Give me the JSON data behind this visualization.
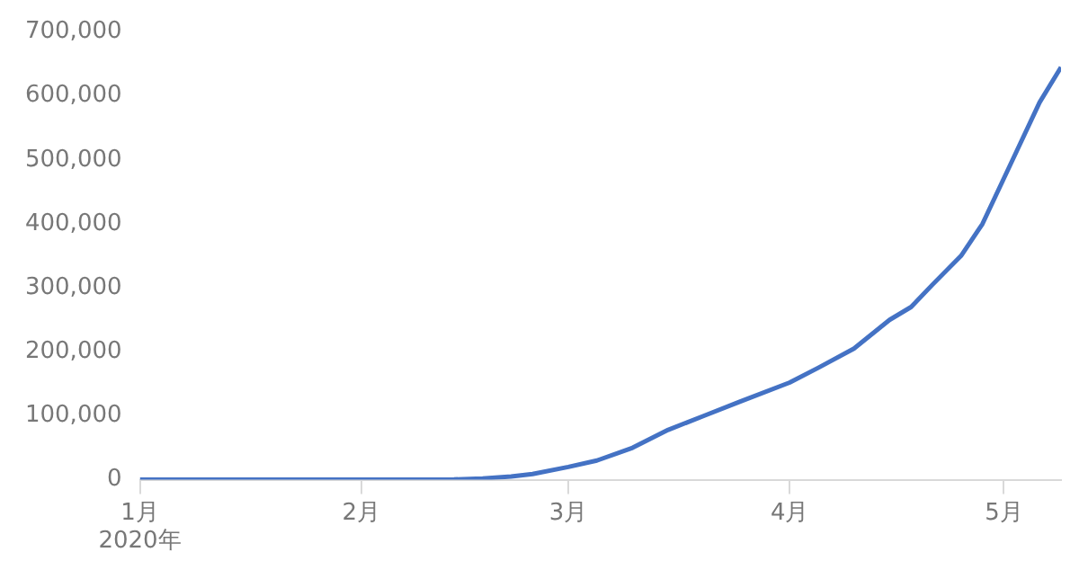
{
  "chart_data": {
    "type": "line",
    "x": [
      "2020-01-01",
      "2020-01-20",
      "2020-02-10",
      "2020-02-14",
      "2020-02-18",
      "2020-02-22",
      "2020-02-25",
      "2020-03-01",
      "2020-03-05",
      "2020-03-10",
      "2020-03-15",
      "2020-03-20",
      "2020-03-25",
      "2020-04-01",
      "2020-04-05",
      "2020-04-10",
      "2020-04-15",
      "2020-04-18",
      "2020-04-21",
      "2020-04-25",
      "2020-04-28",
      "2020-05-02",
      "2020-05-06",
      "2020-05-09"
    ],
    "series": [
      {
        "color": "#4472c4",
        "values": [
          0,
          0,
          0,
          500,
          2000,
          5000,
          9000,
          20000,
          30000,
          50000,
          78000,
          100000,
          122000,
          152000,
          175000,
          205000,
          250000,
          270000,
          305000,
          350000,
          400000,
          495000,
          590000,
          645000
        ]
      }
    ],
    "xlim": [
      "2020-01-01",
      "2020-05-09"
    ],
    "xticks": [
      {
        "value": "2020-01-01",
        "label": "1月\n2020年"
      },
      {
        "value": "2020-02-01",
        "label": "2月"
      },
      {
        "value": "2020-03-01",
        "label": "3月"
      },
      {
        "value": "2020-04-01",
        "label": "4月"
      },
      {
        "value": "2020-05-01",
        "label": "5月"
      }
    ],
    "ylim": [
      0,
      700000
    ],
    "yticks": [
      {
        "value": 0,
        "label": "0"
      },
      {
        "value": 100000,
        "label": "100,000"
      },
      {
        "value": 200000,
        "label": "200,000"
      },
      {
        "value": 300000,
        "label": "300,000"
      },
      {
        "value": 400000,
        "label": "400,000"
      },
      {
        "value": 500000,
        "label": "500,000"
      },
      {
        "value": 600000,
        "label": "600,000"
      },
      {
        "value": 700000,
        "label": "700,000"
      }
    ],
    "grid": false,
    "legend": false,
    "marker": "none",
    "line_style": "solid"
  }
}
